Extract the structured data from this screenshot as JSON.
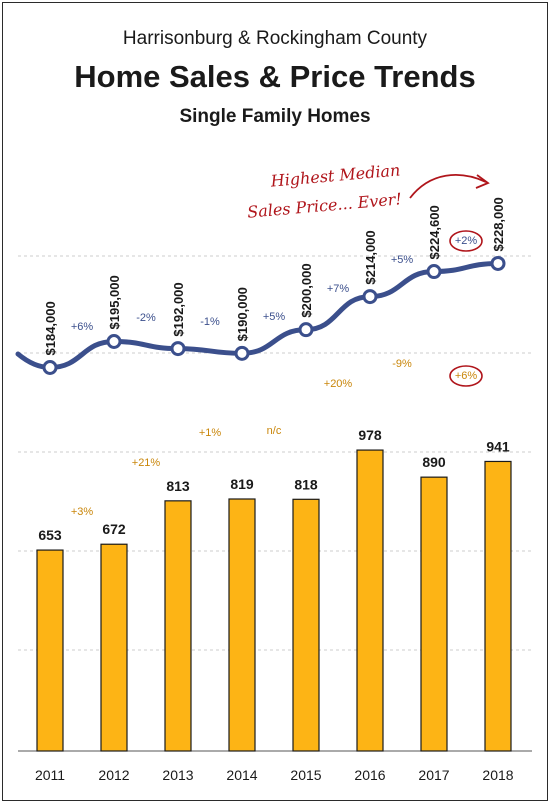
{
  "chart_data": {
    "type": "bar",
    "title_top": "Harrisonburg & Rockingham County",
    "title": "Home Sales & Price Trends",
    "subtitle": "Single Family Homes",
    "categories": [
      "2011",
      "2012",
      "2013",
      "2014",
      "2015",
      "2016",
      "2017",
      "2018"
    ],
    "sales": {
      "values": [
        653,
        672,
        813,
        819,
        818,
        978,
        890,
        941
      ],
      "labels": [
        "653",
        "672",
        "813",
        "819",
        "818",
        "978",
        "890",
        "941"
      ],
      "changes": [
        "+3%",
        "+21%",
        "+1%",
        "n/c",
        "+20%",
        "-9%",
        "+6%"
      ]
    },
    "median_price": {
      "values": [
        184000,
        195000,
        192000,
        190000,
        200000,
        214000,
        224600,
        228000
      ],
      "labels": [
        "$184,000",
        "$195,000",
        "$192,000",
        "$190,000",
        "$200,000",
        "$214,000",
        "$224,600",
        "$228,000"
      ],
      "changes": [
        "+6%",
        "-2%",
        "-1%",
        "+5%",
        "+7%",
        "+5%",
        "+2%"
      ]
    },
    "annotation": {
      "line1": "Highest Median",
      "line2": "Sales Price... Ever!"
    },
    "colors": {
      "bar": "#FDB415",
      "bar_stroke": "#1a1a1a",
      "line": "#3B4F8C",
      "price_change_text": "#3B4F8C",
      "sales_change_text": "#C9860A",
      "annotation": "#B0151B",
      "grid": "#cccccc"
    },
    "grid": true,
    "legend": "none"
  }
}
